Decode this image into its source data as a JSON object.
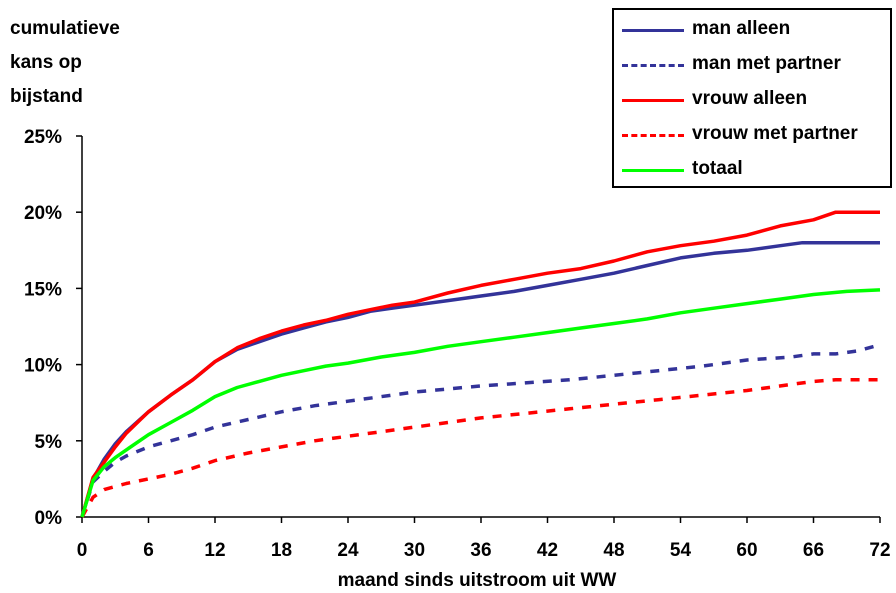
{
  "chart_data": {
    "type": "line",
    "ylabel": [
      "cumulatieve",
      "kans op",
      "bijstand"
    ],
    "xlabel": "maand sinds uitstroom uit WW",
    "xlim": [
      0,
      72
    ],
    "ylim": [
      0,
      25
    ],
    "x_ticks": [
      0,
      6,
      12,
      18,
      24,
      30,
      36,
      42,
      48,
      54,
      60,
      66,
      72
    ],
    "y_ticks": [
      "0%",
      "5%",
      "10%",
      "15%",
      "20%",
      "25%"
    ],
    "grid": false,
    "legend_position": "top-right",
    "series": [
      {
        "name": "man alleen",
        "color": "#333399",
        "style": "solid",
        "x": [
          0,
          1,
          2,
          3,
          4,
          6,
          8,
          10,
          12,
          14,
          16,
          18,
          20,
          22,
          24,
          26,
          28,
          30,
          33,
          36,
          39,
          42,
          45,
          48,
          51,
          54,
          57,
          60,
          63,
          65,
          68,
          72
        ],
        "y": [
          0,
          2.5,
          3.8,
          4.8,
          5.6,
          6.9,
          8.0,
          9.0,
          10.2,
          11.0,
          11.5,
          12.0,
          12.4,
          12.8,
          13.1,
          13.5,
          13.7,
          13.9,
          14.2,
          14.5,
          14.8,
          15.2,
          15.6,
          16.0,
          16.5,
          17.0,
          17.3,
          17.5,
          17.8,
          18.0,
          18.0,
          18.0
        ]
      },
      {
        "name": "man met partner",
        "color": "#333399",
        "style": "dashed",
        "x": [
          0,
          1,
          2,
          3,
          4,
          6,
          8,
          10,
          12,
          15,
          18,
          21,
          24,
          27,
          30,
          33,
          36,
          40,
          44,
          48,
          52,
          56,
          60,
          64,
          66,
          68,
          70,
          72
        ],
        "y": [
          0,
          2.3,
          3.0,
          3.6,
          4.0,
          4.6,
          5.0,
          5.4,
          5.9,
          6.4,
          6.9,
          7.3,
          7.6,
          7.9,
          8.2,
          8.4,
          8.6,
          8.8,
          9.0,
          9.3,
          9.6,
          9.9,
          10.3,
          10.5,
          10.7,
          10.7,
          10.9,
          11.3
        ]
      },
      {
        "name": "vrouw alleen",
        "color": "#ff0000",
        "style": "solid",
        "x": [
          0,
          1,
          2,
          3,
          4,
          6,
          8,
          10,
          12,
          14,
          16,
          18,
          20,
          22,
          24,
          26,
          28,
          30,
          33,
          36,
          39,
          42,
          45,
          48,
          51,
          54,
          57,
          60,
          63,
          66,
          68,
          72
        ],
        "y": [
          0,
          2.6,
          3.6,
          4.6,
          5.5,
          6.9,
          8.0,
          9.0,
          10.2,
          11.1,
          11.7,
          12.2,
          12.6,
          12.9,
          13.3,
          13.6,
          13.9,
          14.1,
          14.7,
          15.2,
          15.6,
          16.0,
          16.3,
          16.8,
          17.4,
          17.8,
          18.1,
          18.5,
          19.1,
          19.5,
          20.0,
          20.0
        ]
      },
      {
        "name": "vrouw met partner",
        "color": "#ff0000",
        "style": "dashed",
        "x": [
          0,
          1,
          2,
          4,
          6,
          8,
          10,
          12,
          15,
          18,
          21,
          24,
          27,
          30,
          33,
          36,
          40,
          44,
          48,
          52,
          56,
          60,
          64,
          66,
          68,
          72
        ],
        "y": [
          0,
          1.3,
          1.8,
          2.2,
          2.5,
          2.8,
          3.2,
          3.7,
          4.2,
          4.6,
          5.0,
          5.3,
          5.6,
          5.9,
          6.2,
          6.5,
          6.8,
          7.1,
          7.4,
          7.7,
          8.0,
          8.3,
          8.7,
          8.9,
          9.0,
          9.0
        ]
      },
      {
        "name": "totaal",
        "color": "#00ff00",
        "style": "solid",
        "x": [
          0,
          1,
          2,
          3,
          4,
          6,
          8,
          10,
          12,
          14,
          16,
          18,
          20,
          22,
          24,
          27,
          30,
          33,
          36,
          39,
          42,
          45,
          48,
          51,
          54,
          57,
          60,
          63,
          66,
          69,
          72
        ],
        "y": [
          0,
          2.4,
          3.3,
          3.9,
          4.4,
          5.4,
          6.2,
          7.0,
          7.9,
          8.5,
          8.9,
          9.3,
          9.6,
          9.9,
          10.1,
          10.5,
          10.8,
          11.2,
          11.5,
          11.8,
          12.1,
          12.4,
          12.7,
          13.0,
          13.4,
          13.7,
          14.0,
          14.3,
          14.6,
          14.8,
          14.9
        ]
      }
    ]
  }
}
